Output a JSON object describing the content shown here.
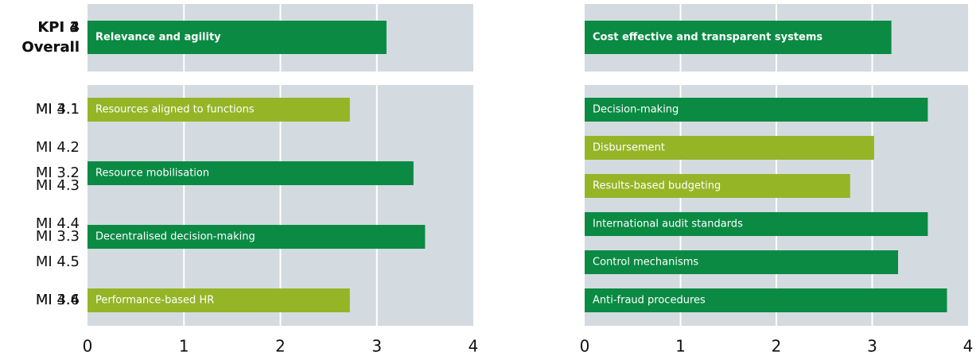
{
  "chart_data": [
    {
      "type": "bar",
      "overall": {
        "label": [
          "KPI 3",
          "Overall"
        ],
        "name": "Relevance and agility",
        "value": 3.1,
        "color": "#0a8a43"
      },
      "categories": [
        "MI 3.1",
        "MI 3.2",
        "MI 3.3",
        "MI 3.4"
      ],
      "bar_labels": [
        "Resources aligned to functions",
        "Resource mobilisation",
        "Decentralised decision-making",
        "Performance-based HR"
      ],
      "values": [
        2.72,
        3.38,
        3.5,
        2.72
      ],
      "colors": [
        "#95b526",
        "#0a8a43",
        "#0a8a43",
        "#95b526"
      ],
      "xlim": [
        0,
        4
      ],
      "xticks": [
        0,
        1,
        2,
        3,
        4
      ],
      "grid": true
    },
    {
      "type": "bar",
      "overall": {
        "label": [
          "KPI 4",
          "Overall"
        ],
        "name": "Cost effective and transparent systems",
        "value": 3.2,
        "color": "#0a8a43"
      },
      "categories": [
        "MI 4.1",
        "MI 4.2",
        "MI 4.3",
        "MI 4.4",
        "MI 4.5",
        "MI 4.6"
      ],
      "bar_labels": [
        "Decision-making",
        "Disbursement",
        "Results-based budgeting",
        "International audit standards",
        "Control mechanisms",
        "Anti-fraud procedures"
      ],
      "values": [
        3.58,
        3.02,
        2.77,
        3.58,
        3.27,
        3.78
      ],
      "colors": [
        "#0a8a43",
        "#95b526",
        "#95b526",
        "#0a8a43",
        "#0a8a43",
        "#0a8a43"
      ],
      "xlim": [
        0,
        4
      ],
      "xticks": [
        0,
        1,
        2,
        3,
        4
      ],
      "grid": true
    }
  ]
}
